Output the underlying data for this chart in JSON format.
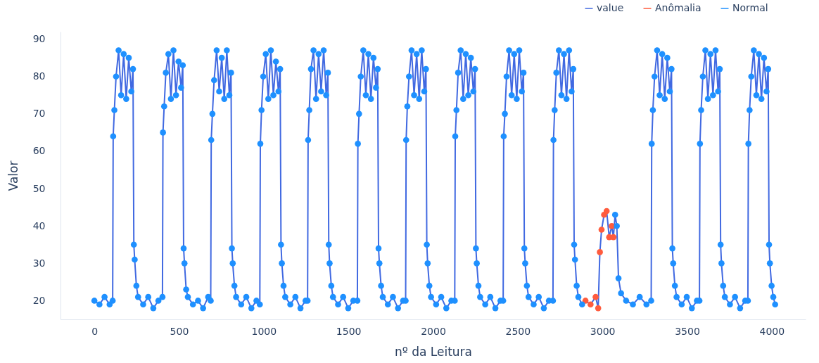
{
  "chart_data": {
    "type": "scatter",
    "xlabel": "nº da Leitura",
    "xlim": [
      -200,
      4200
    ],
    "ylim": [
      15,
      92
    ],
    "ylabel": "Valor",
    "xticks": [
      0,
      500,
      1000,
      1500,
      2000,
      2500,
      3000,
      3500,
      4000
    ],
    "yticks": [
      20,
      30,
      40,
      50,
      60,
      70,
      80,
      90
    ],
    "grid": false,
    "legend": "top right",
    "series": [
      {
        "name": "value",
        "type": "line",
        "color": "#4169e1",
        "x": [
          0,
          30,
          60,
          90,
          108,
          111,
          118,
          128,
          143,
          158,
          173,
          188,
          203,
          218,
          228,
          233,
          238,
          248,
          258,
          288,
          318,
          348,
          378,
          402,
          405,
          412,
          422,
          437,
          452,
          467,
          482,
          497,
          512,
          522,
          527,
          532,
          542,
          552,
          582,
          612,
          642,
          672,
          687,
          690,
          697,
          707,
          722,
          737,
          752,
          767,
          782,
          797,
          807,
          812,
          817,
          827,
          837,
          867,
          897,
          927,
          957,
          977,
          980,
          987,
          997,
          1012,
          1027,
          1042,
          1057,
          1072,
          1087,
          1097,
          1102,
          1107,
          1117,
          1127,
          1157,
          1187,
          1217,
          1247,
          1259,
          1262,
          1269,
          1279,
          1294,
          1309,
          1324,
          1339,
          1354,
          1369,
          1379,
          1384,
          1389,
          1399,
          1409,
          1439,
          1469,
          1499,
          1529,
          1553,
          1556,
          1563,
          1573,
          1588,
          1603,
          1618,
          1633,
          1648,
          1663,
          1673,
          1678,
          1683,
          1693,
          1703,
          1733,
          1763,
          1793,
          1823,
          1838,
          1841,
          1848,
          1858,
          1873,
          1888,
          1903,
          1918,
          1933,
          1948,
          1958,
          1963,
          1968,
          1978,
          1988,
          2018,
          2048,
          2078,
          2108,
          2128,
          2131,
          2138,
          2148,
          2163,
          2178,
          2193,
          2208,
          2223,
          2238,
          2248,
          2253,
          2258,
          2268,
          2278,
          2308,
          2338,
          2368,
          2398,
          2414,
          2417,
          2424,
          2434,
          2449,
          2464,
          2479,
          2494,
          2509,
          2524,
          2534,
          2539,
          2544,
          2554,
          2564,
          2594,
          2624,
          2654,
          2684,
          2708,
          2711,
          2718,
          2728,
          2743,
          2758,
          2773,
          2788,
          2803,
          2818,
          2828,
          2833,
          2838,
          2848,
          2858,
          2880,
          2900,
          2930,
          2960,
          2975,
          2985,
          2995,
          3010,
          3025,
          3040,
          3055,
          3065,
          3075,
          3085,
          3095,
          3110,
          3140,
          3180,
          3220,
          3260,
          3288,
          3291,
          3298,
          3308,
          3323,
          3338,
          3353,
          3368,
          3383,
          3398,
          3408,
          3413,
          3418,
          3428,
          3438,
          3468,
          3498,
          3528,
          3558,
          3573,
          3576,
          3583,
          3593,
          3608,
          3623,
          3638,
          3653,
          3668,
          3683,
          3693,
          3698,
          3703,
          3713,
          3723,
          3753,
          3783,
          3813,
          3843,
          3859,
          3862,
          3869,
          3879,
          3894,
          3909,
          3924,
          3939,
          3954,
          3969,
          3979,
          3984,
          3989,
          3999,
          4009,
          4020
        ],
        "values": [
          20,
          19,
          21,
          19,
          20,
          64,
          71,
          80,
          87,
          75,
          86,
          74,
          85,
          76,
          82,
          35,
          31,
          24,
          21,
          19,
          21,
          18,
          20,
          21,
          65,
          72,
          81,
          86,
          74,
          87,
          75,
          84,
          77,
          83,
          34,
          30,
          23,
          21,
          19,
          20,
          18,
          21,
          20,
          63,
          70,
          79,
          87,
          76,
          85,
          74,
          87,
          75,
          81,
          34,
          30,
          24,
          21,
          19,
          21,
          18,
          20,
          19,
          62,
          71,
          80,
          86,
          74,
          87,
          75,
          84,
          76,
          82,
          35,
          30,
          24,
          21,
          19,
          21,
          18,
          20,
          20,
          63,
          71,
          82,
          87,
          74,
          86,
          76,
          87,
          75,
          81,
          35,
          30,
          24,
          21,
          19,
          21,
          18,
          20,
          20,
          62,
          70,
          80,
          87,
          75,
          86,
          74,
          85,
          77,
          82,
          34,
          30,
          24,
          21,
          19,
          21,
          18,
          20,
          20,
          63,
          72,
          80,
          87,
          75,
          86,
          74,
          87,
          76,
          82,
          35,
          30,
          24,
          21,
          19,
          21,
          18,
          20,
          20,
          64,
          71,
          81,
          87,
          74,
          86,
          75,
          85,
          76,
          82,
          34,
          30,
          24,
          21,
          19,
          21,
          18,
          20,
          20,
          64,
          70,
          80,
          87,
          75,
          86,
          74,
          87,
          76,
          81,
          34,
          30,
          24,
          21,
          19,
          21,
          18,
          20,
          20,
          63,
          71,
          81,
          87,
          75,
          86,
          74,
          87,
          76,
          82,
          35,
          31,
          24,
          21,
          19,
          20,
          19,
          21,
          18,
          33,
          39,
          43,
          44,
          37,
          40,
          37,
          43,
          40,
          26,
          22,
          20,
          19,
          21,
          19,
          20,
          62,
          71,
          80,
          87,
          75,
          86,
          74,
          85,
          76,
          82,
          34,
          30,
          24,
          21,
          19,
          21,
          18,
          20,
          20,
          62,
          71,
          80,
          87,
          74,
          86,
          75,
          87,
          76,
          82,
          35,
          30,
          24,
          21,
          19,
          21,
          18,
          20,
          20,
          62,
          71,
          80,
          87,
          75,
          86,
          74,
          85,
          76,
          82,
          35,
          30,
          24,
          21,
          19
        ]
      },
      {
        "name": "Anômalia",
        "color": "#ff5b3d",
        "x": [
          2900,
          2930,
          2960,
          2975,
          2985,
          2995,
          3010,
          3025,
          3040,
          3055,
          3065
        ],
        "values": [
          20,
          19,
          21,
          18,
          33,
          39,
          43,
          44,
          37,
          40,
          37
        ]
      },
      {
        "name": "Normal",
        "color": "#1e90ff",
        "x": [
          0,
          30,
          60,
          90,
          108,
          111,
          118,
          128,
          143,
          158,
          173,
          188,
          203,
          218,
          228,
          233,
          238,
          248,
          258,
          288,
          318,
          348,
          378,
          402,
          405,
          412,
          422,
          437,
          452,
          467,
          482,
          497,
          512,
          522,
          527,
          532,
          542,
          552,
          582,
          612,
          642,
          672,
          687,
          690,
          697,
          707,
          722,
          737,
          752,
          767,
          782,
          797,
          807,
          812,
          817,
          827,
          837,
          867,
          897,
          927,
          957,
          977,
          980,
          987,
          997,
          1012,
          1027,
          1042,
          1057,
          1072,
          1087,
          1097,
          1102,
          1107,
          1117,
          1127,
          1157,
          1187,
          1217,
          1247,
          1259,
          1262,
          1269,
          1279,
          1294,
          1309,
          1324,
          1339,
          1354,
          1369,
          1379,
          1384,
          1389,
          1399,
          1409,
          1439,
          1469,
          1499,
          1529,
          1553,
          1556,
          1563,
          1573,
          1588,
          1603,
          1618,
          1633,
          1648,
          1663,
          1673,
          1678,
          1683,
          1693,
          1703,
          1733,
          1763,
          1793,
          1823,
          1838,
          1841,
          1848,
          1858,
          1873,
          1888,
          1903,
          1918,
          1933,
          1948,
          1958,
          1963,
          1968,
          1978,
          1988,
          2018,
          2048,
          2078,
          2108,
          2128,
          2131,
          2138,
          2148,
          2163,
          2178,
          2193,
          2208,
          2223,
          2238,
          2248,
          2253,
          2258,
          2268,
          2278,
          2308,
          2338,
          2368,
          2398,
          2414,
          2417,
          2424,
          2434,
          2449,
          2464,
          2479,
          2494,
          2509,
          2524,
          2534,
          2539,
          2544,
          2554,
          2564,
          2594,
          2624,
          2654,
          2684,
          2708,
          2711,
          2718,
          2728,
          2743,
          2758,
          2773,
          2788,
          2803,
          2818,
          2828,
          2833,
          2838,
          2848,
          2858,
          2880,
          3075,
          3085,
          3095,
          3110,
          3140,
          3180,
          3220,
          3260,
          3288,
          3291,
          3298,
          3308,
          3323,
          3338,
          3353,
          3368,
          3383,
          3398,
          3408,
          3413,
          3418,
          3428,
          3438,
          3468,
          3498,
          3528,
          3558,
          3573,
          3576,
          3583,
          3593,
          3608,
          3623,
          3638,
          3653,
          3668,
          3683,
          3693,
          3698,
          3703,
          3713,
          3723,
          3753,
          3783,
          3813,
          3843,
          3859,
          3862,
          3869,
          3879,
          3894,
          3909,
          3924,
          3939,
          3954,
          3969,
          3979,
          3984,
          3989,
          3999,
          4009,
          4020
        ],
        "values": [
          20,
          19,
          21,
          19,
          20,
          64,
          71,
          80,
          87,
          75,
          86,
          74,
          85,
          76,
          82,
          35,
          31,
          24,
          21,
          19,
          21,
          18,
          20,
          21,
          65,
          72,
          81,
          86,
          74,
          87,
          75,
          84,
          77,
          83,
          34,
          30,
          23,
          21,
          19,
          20,
          18,
          21,
          20,
          63,
          70,
          79,
          87,
          76,
          85,
          74,
          87,
          75,
          81,
          34,
          30,
          24,
          21,
          19,
          21,
          18,
          20,
          19,
          62,
          71,
          80,
          86,
          74,
          87,
          75,
          84,
          76,
          82,
          35,
          30,
          24,
          21,
          19,
          21,
          18,
          20,
          20,
          63,
          71,
          82,
          87,
          74,
          86,
          76,
          87,
          75,
          81,
          35,
          30,
          24,
          21,
          19,
          21,
          18,
          20,
          20,
          62,
          70,
          80,
          87,
          75,
          86,
          74,
          85,
          77,
          82,
          34,
          30,
          24,
          21,
          19,
          21,
          18,
          20,
          20,
          63,
          72,
          80,
          87,
          75,
          86,
          74,
          87,
          76,
          82,
          35,
          30,
          24,
          21,
          19,
          21,
          18,
          20,
          20,
          64,
          71,
          81,
          87,
          74,
          86,
          75,
          85,
          76,
          82,
          34,
          30,
          24,
          21,
          19,
          21,
          18,
          20,
          20,
          64,
          70,
          80,
          87,
          75,
          86,
          74,
          87,
          76,
          81,
          34,
          30,
          24,
          21,
          19,
          21,
          18,
          20,
          20,
          63,
          71,
          81,
          87,
          75,
          86,
          74,
          87,
          76,
          82,
          35,
          31,
          24,
          21,
          19,
          43,
          40,
          26,
          22,
          20,
          19,
          21,
          19,
          20,
          62,
          71,
          80,
          87,
          75,
          86,
          74,
          85,
          76,
          82,
          34,
          30,
          24,
          21,
          19,
          21,
          18,
          20,
          20,
          62,
          71,
          80,
          87,
          74,
          86,
          75,
          87,
          76,
          82,
          35,
          30,
          24,
          21,
          19,
          21,
          18,
          20,
          20,
          62,
          71,
          80,
          87,
          75,
          86,
          74,
          85,
          76,
          82,
          35,
          30,
          24,
          21,
          19
        ]
      }
    ]
  }
}
